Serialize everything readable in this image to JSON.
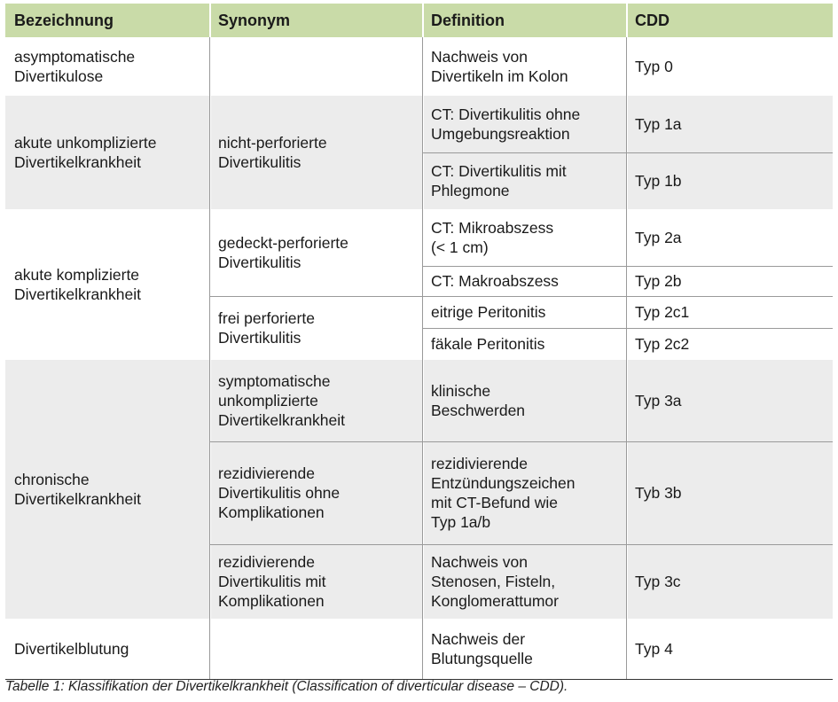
{
  "table": {
    "headers": [
      "Bezeichnung",
      "Synonym",
      "Definition",
      "CDD"
    ],
    "rows": [
      {
        "bezeichnung": "asymptomatische\nDivertikulose",
        "synonym": "",
        "definition": "Nachweis von\nDivertikeln im Kolon",
        "cdd": "Typ 0"
      },
      {
        "bezeichnung": "akute unkomplizierte\nDivertikelkrankheit",
        "synonym": "nicht-perforierte\nDivertikulitis",
        "definition": "CT: Divertikulitis ohne\nUmgebungsreaktion",
        "cdd": "Typ 1a"
      },
      {
        "definition": "CT: Divertikulitis mit\nPhlegmone",
        "cdd": "Typ 1b"
      },
      {
        "bezeichnung": "akute komplizierte\nDivertikelkrankheit",
        "synonym": "gedeckt-perforierte\nDivertikulitis",
        "definition": "CT: Mikroabszess\n(< 1 cm)",
        "cdd": "Typ 2a"
      },
      {
        "definition": "CT: Makroabszess",
        "cdd": "Typ 2b"
      },
      {
        "synonym": "frei perforierte\nDivertikulitis",
        "definition": "eitrige Peritonitis",
        "cdd": "Typ 2c1"
      },
      {
        "definition": "fäkale Peritonitis",
        "cdd": "Typ 2c2"
      },
      {
        "bezeichnung": "chronische\nDivertikelkrankheit",
        "synonym": "symptomatische\nunkomplizierte\nDivertikelkrankheit",
        "definition": "klinische\nBeschwerden",
        "cdd": "Typ 3a"
      },
      {
        "synonym": "rezidivierende\nDivertikulitis ohne\nKomplikationen",
        "definition": "rezidivierende\nEntzündungszeichen\nmit CT-Befund wie\nTyp 1a/b",
        "cdd": "Tyb 3b"
      },
      {
        "synonym": "rezidivierende\nDivertikulitis mit\nKomplikationen",
        "definition": "Nachweis von\nStenosen, Fisteln,\nKonglomerattumor",
        "cdd": "Typ 3c"
      },
      {
        "bezeichnung": "Divertikelblutung",
        "synonym": "",
        "definition": "Nachweis der\nBlutungsquelle",
        "cdd": "Typ 4"
      }
    ]
  },
  "caption": "Tabelle 1: Klassifikation der Divertikelkrankheit (Classification of diverticular disease – CDD).",
  "colors": {
    "header": "#c9dba8",
    "shaded": "#ececec",
    "border": "#9a9a9a"
  }
}
